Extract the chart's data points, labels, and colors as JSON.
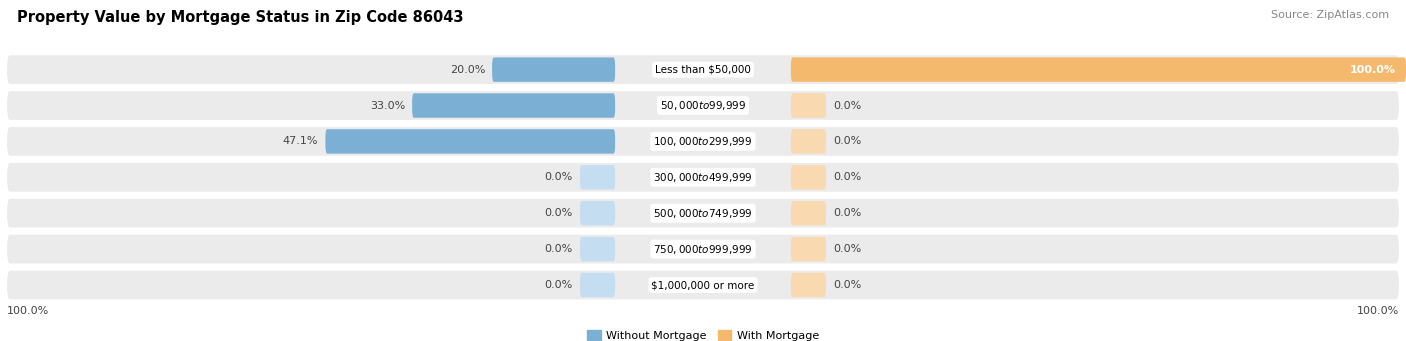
{
  "title": "Property Value by Mortgage Status in Zip Code 86043",
  "source": "Source: ZipAtlas.com",
  "categories": [
    "Less than $50,000",
    "$50,000 to $99,999",
    "$100,000 to $299,999",
    "$300,000 to $499,999",
    "$500,000 to $749,999",
    "$750,000 to $999,999",
    "$1,000,000 or more"
  ],
  "without_mortgage": [
    20.0,
    33.0,
    47.1,
    0.0,
    0.0,
    0.0,
    0.0
  ],
  "with_mortgage": [
    100.0,
    0.0,
    0.0,
    0.0,
    0.0,
    0.0,
    0.0
  ],
  "without_mortgage_color": "#7bafd4",
  "with_mortgage_color": "#f5b96e",
  "without_mortgage_light": "#c5ddf0",
  "with_mortgage_light": "#f8d9b0",
  "row_bg_color": "#ebebeb",
  "title_fontsize": 10.5,
  "source_fontsize": 8,
  "label_fontsize": 8,
  "cat_fontsize": 7.5,
  "left_axis_label": "100.0%",
  "right_axis_label": "100.0%",
  "legend_without": "Without Mortgage",
  "legend_with": "With Mortgage"
}
